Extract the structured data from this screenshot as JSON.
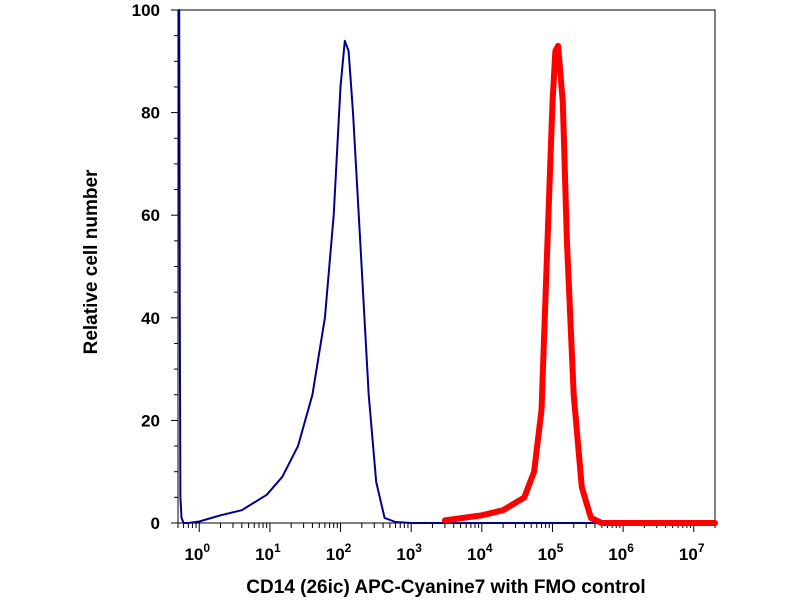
{
  "chart_data": {
    "type": "line",
    "xlabel": "CD14 (26ic) APC-Cyanine7 with FMO control",
    "ylabel": "Relative cell number",
    "x_scale": "log",
    "xlim": [
      0.5,
      20000000
    ],
    "ylim": [
      0,
      100
    ],
    "x_ticks": [
      {
        "value": 1,
        "base": "10",
        "exp": "0"
      },
      {
        "value": 10,
        "base": "10",
        "exp": "1"
      },
      {
        "value": 100,
        "base": "10",
        "exp": "2"
      },
      {
        "value": 1000,
        "base": "10",
        "exp": "3"
      },
      {
        "value": 10000,
        "base": "10",
        "exp": "4"
      },
      {
        "value": 100000,
        "base": "10",
        "exp": "5"
      },
      {
        "value": 1000000,
        "base": "10",
        "exp": "6"
      },
      {
        "value": 10000000,
        "base": "10",
        "exp": "7"
      }
    ],
    "y_ticks": [
      "0",
      "20",
      "40",
      "60",
      "80",
      "100"
    ],
    "grid": false,
    "legend": "none",
    "series": [
      {
        "color": "#00008b",
        "width": 2,
        "x": [
          0.52,
          0.53,
          0.54,
          0.56,
          0.6,
          0.7,
          1,
          2,
          4,
          6,
          9,
          15,
          25,
          40,
          60,
          80,
          100,
          115,
          130,
          150,
          190,
          250,
          320,
          420,
          600,
          1000,
          2000,
          5000,
          20000000
        ],
        "y": [
          100,
          40,
          5,
          1,
          0,
          0,
          0.3,
          1.5,
          2.5,
          4,
          5.5,
          9,
          15,
          25,
          40,
          60,
          85,
          94,
          92,
          80,
          55,
          25,
          8,
          1,
          0.2,
          0,
          0,
          0,
          0
        ]
      },
      {
        "color": "#ff0000",
        "width": 6,
        "x": [
          3000,
          10000,
          20000,
          40000,
          55000,
          70000,
          85000,
          100000,
          110000,
          120000,
          140000,
          160000,
          200000,
          260000,
          350000,
          500000,
          1000000,
          20000000
        ],
        "y": [
          0.5,
          1.5,
          2.5,
          5,
          10,
          22,
          55,
          82,
          92,
          93,
          82,
          55,
          25,
          7,
          1,
          0,
          0,
          0
        ]
      }
    ]
  }
}
